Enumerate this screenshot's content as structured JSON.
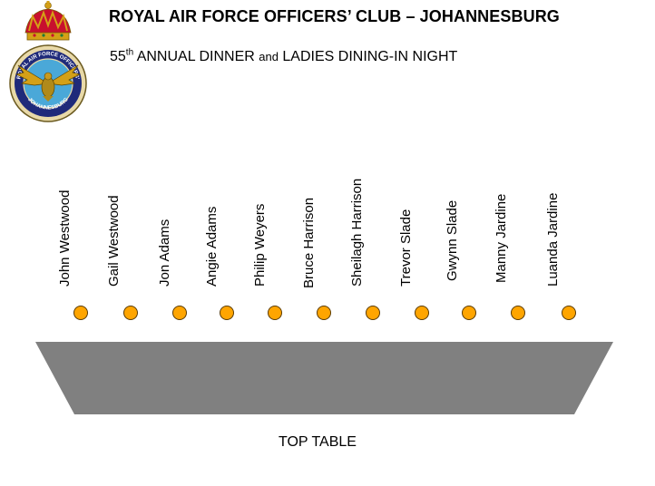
{
  "header": {
    "title": "ROYAL AIR FORCE OFFICERS’ CLUB – JOHANNESBURG",
    "subtitle_part1": "55",
    "subtitle_sup": "th",
    "subtitle_part2": " ANNUAL DINNER ",
    "subtitle_small": "and",
    "subtitle_part3": " LADIES DINING-IN NIGHT"
  },
  "logo": {
    "ring_text_top": "ROYAL AIR FORCE OFFICERS'",
    "ring_text_bottom": "JOHANNESBURG",
    "colors": {
      "crown_red": "#c8102e",
      "gold": "#d4a017",
      "sky": "#4aa8d8",
      "ring": "#1f2a7a"
    }
  },
  "guests": [
    "John Westwood",
    "Gail Westwood",
    "Jon Adams",
    "Angie Adams",
    "Philip Weyers",
    "Bruce Harrison",
    "Sheilagh Harrison",
    "Trevor Slade",
    "Gwynn Slade",
    "Manny Jardine",
    "Luanda Jardine"
  ],
  "table": {
    "label": "TOP TABLE",
    "color": "#808080"
  },
  "seat_color": "#ffa500"
}
